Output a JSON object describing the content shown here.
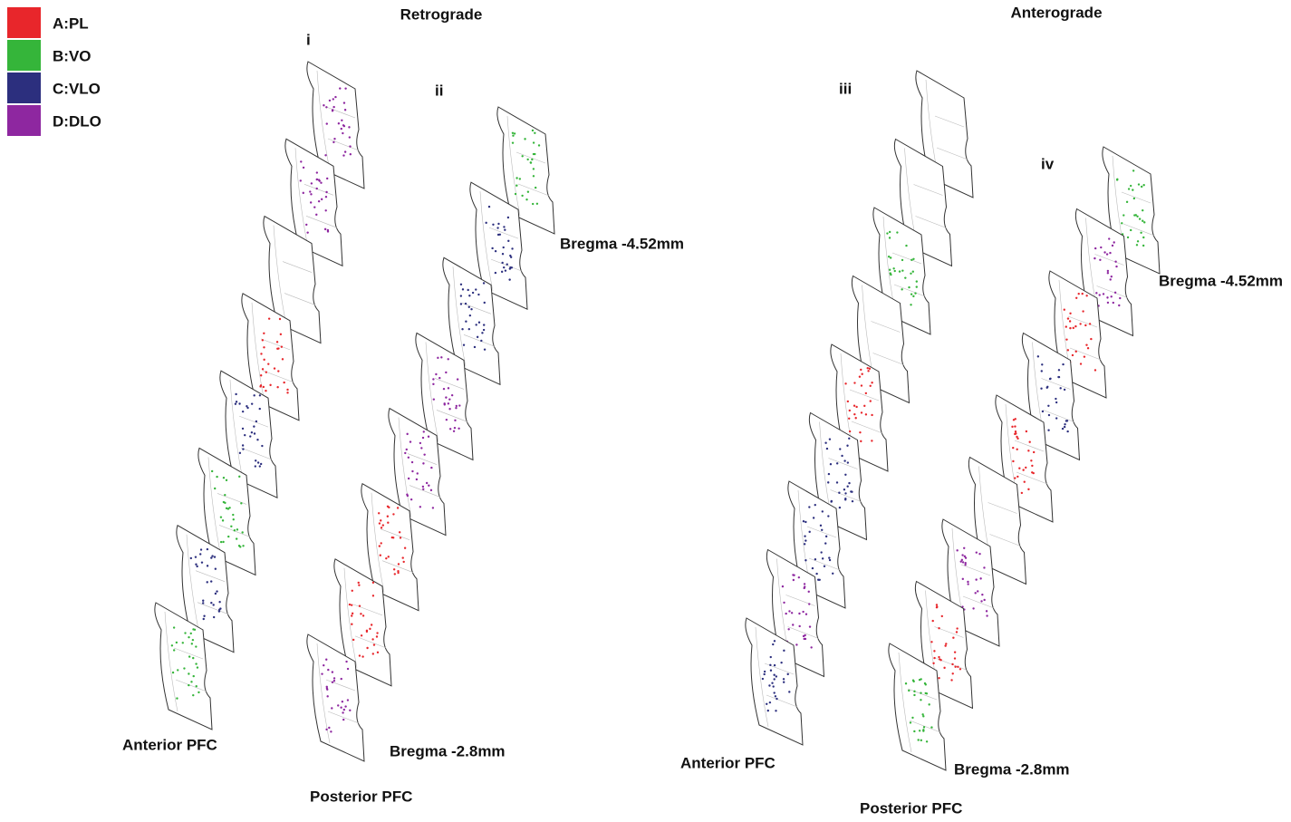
{
  "legend": [
    {
      "label": "A:PL",
      "color": "#e8262b"
    },
    {
      "label": "B:VO",
      "color": "#35b53a"
    },
    {
      "label": "C:VLO",
      "color": "#2c2f7e"
    },
    {
      "label": "D:DLO",
      "color": "#8e27a0"
    }
  ],
  "retrograde": {
    "title": "Retrograde",
    "panel_left": "i",
    "panel_right": "ii",
    "bregma_top": "Bregma -4.52mm",
    "bregma_bottom": "Bregma -2.8mm",
    "anterior": "Anterior PFC",
    "posterior": "Posterior PFC"
  },
  "anterograde": {
    "title": "Anterograde",
    "panel_left": "iii",
    "panel_right": "iv",
    "bregma_top": "Bregma -4.52mm",
    "bregma_bottom": "Bregma -2.8mm",
    "anterior": "Anterior PFC",
    "posterior": "Posterior PFC"
  }
}
